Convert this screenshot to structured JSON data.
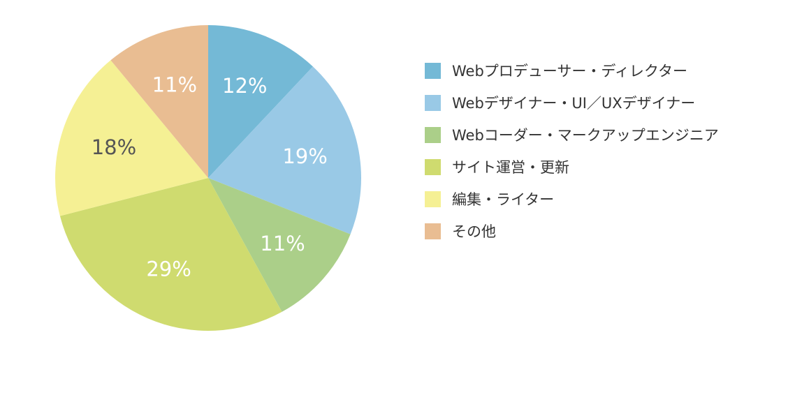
{
  "chart_data": {
    "type": "pie",
    "categories": [
      "Webプロデューサー・ディレクター",
      "Webデザイナー・UI／UXデザイナー",
      "Webコーダー・マークアップエンジニア",
      "サイト運営・更新",
      "編集・ライター",
      "その他"
    ],
    "values": [
      12,
      19,
      11,
      29,
      18,
      11
    ],
    "labels": [
      "12%",
      "19%",
      "11%",
      "29%",
      "18%",
      "11%"
    ],
    "colors": [
      "#74b9d6",
      "#99c9e6",
      "#abcf89",
      "#cfdb6f",
      "#f5f094",
      "#e9bd92"
    ],
    "label_colors": [
      "#ffffff",
      "#ffffff",
      "#ffffff",
      "#ffffff",
      "#555555",
      "#ffffff"
    ],
    "start": "12 o'clock",
    "direction": "clockwise",
    "legend_position": "right"
  }
}
